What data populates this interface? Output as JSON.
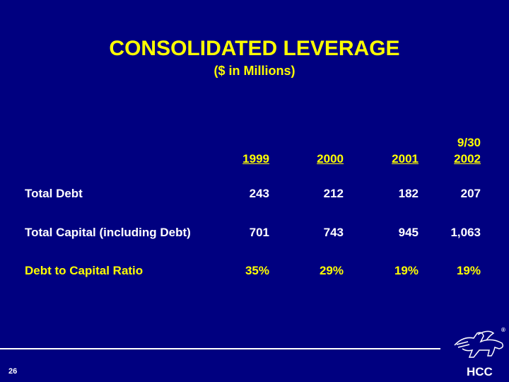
{
  "title": "CONSOLIDATED LEVERAGE",
  "subtitle": "($ in Millions)",
  "columns": [
    {
      "top": "",
      "label": "1999"
    },
    {
      "top": "",
      "label": "2000"
    },
    {
      "top": "",
      "label": "2001"
    },
    {
      "top": "9/30",
      "label": "2002"
    }
  ],
  "rows": [
    {
      "label": "Total Debt",
      "values": [
        "243",
        "212",
        "182",
        "207"
      ]
    },
    {
      "label": "Total Capital (including Debt)",
      "values": [
        "701",
        "743",
        "945",
        "1,063"
      ]
    },
    {
      "label": "Debt to Capital Ratio",
      "values": [
        "35%",
        "29%",
        "19%",
        "19%"
      ]
    }
  ],
  "page_number": "26",
  "logo": {
    "text": "HCC",
    "registered": "®"
  }
}
